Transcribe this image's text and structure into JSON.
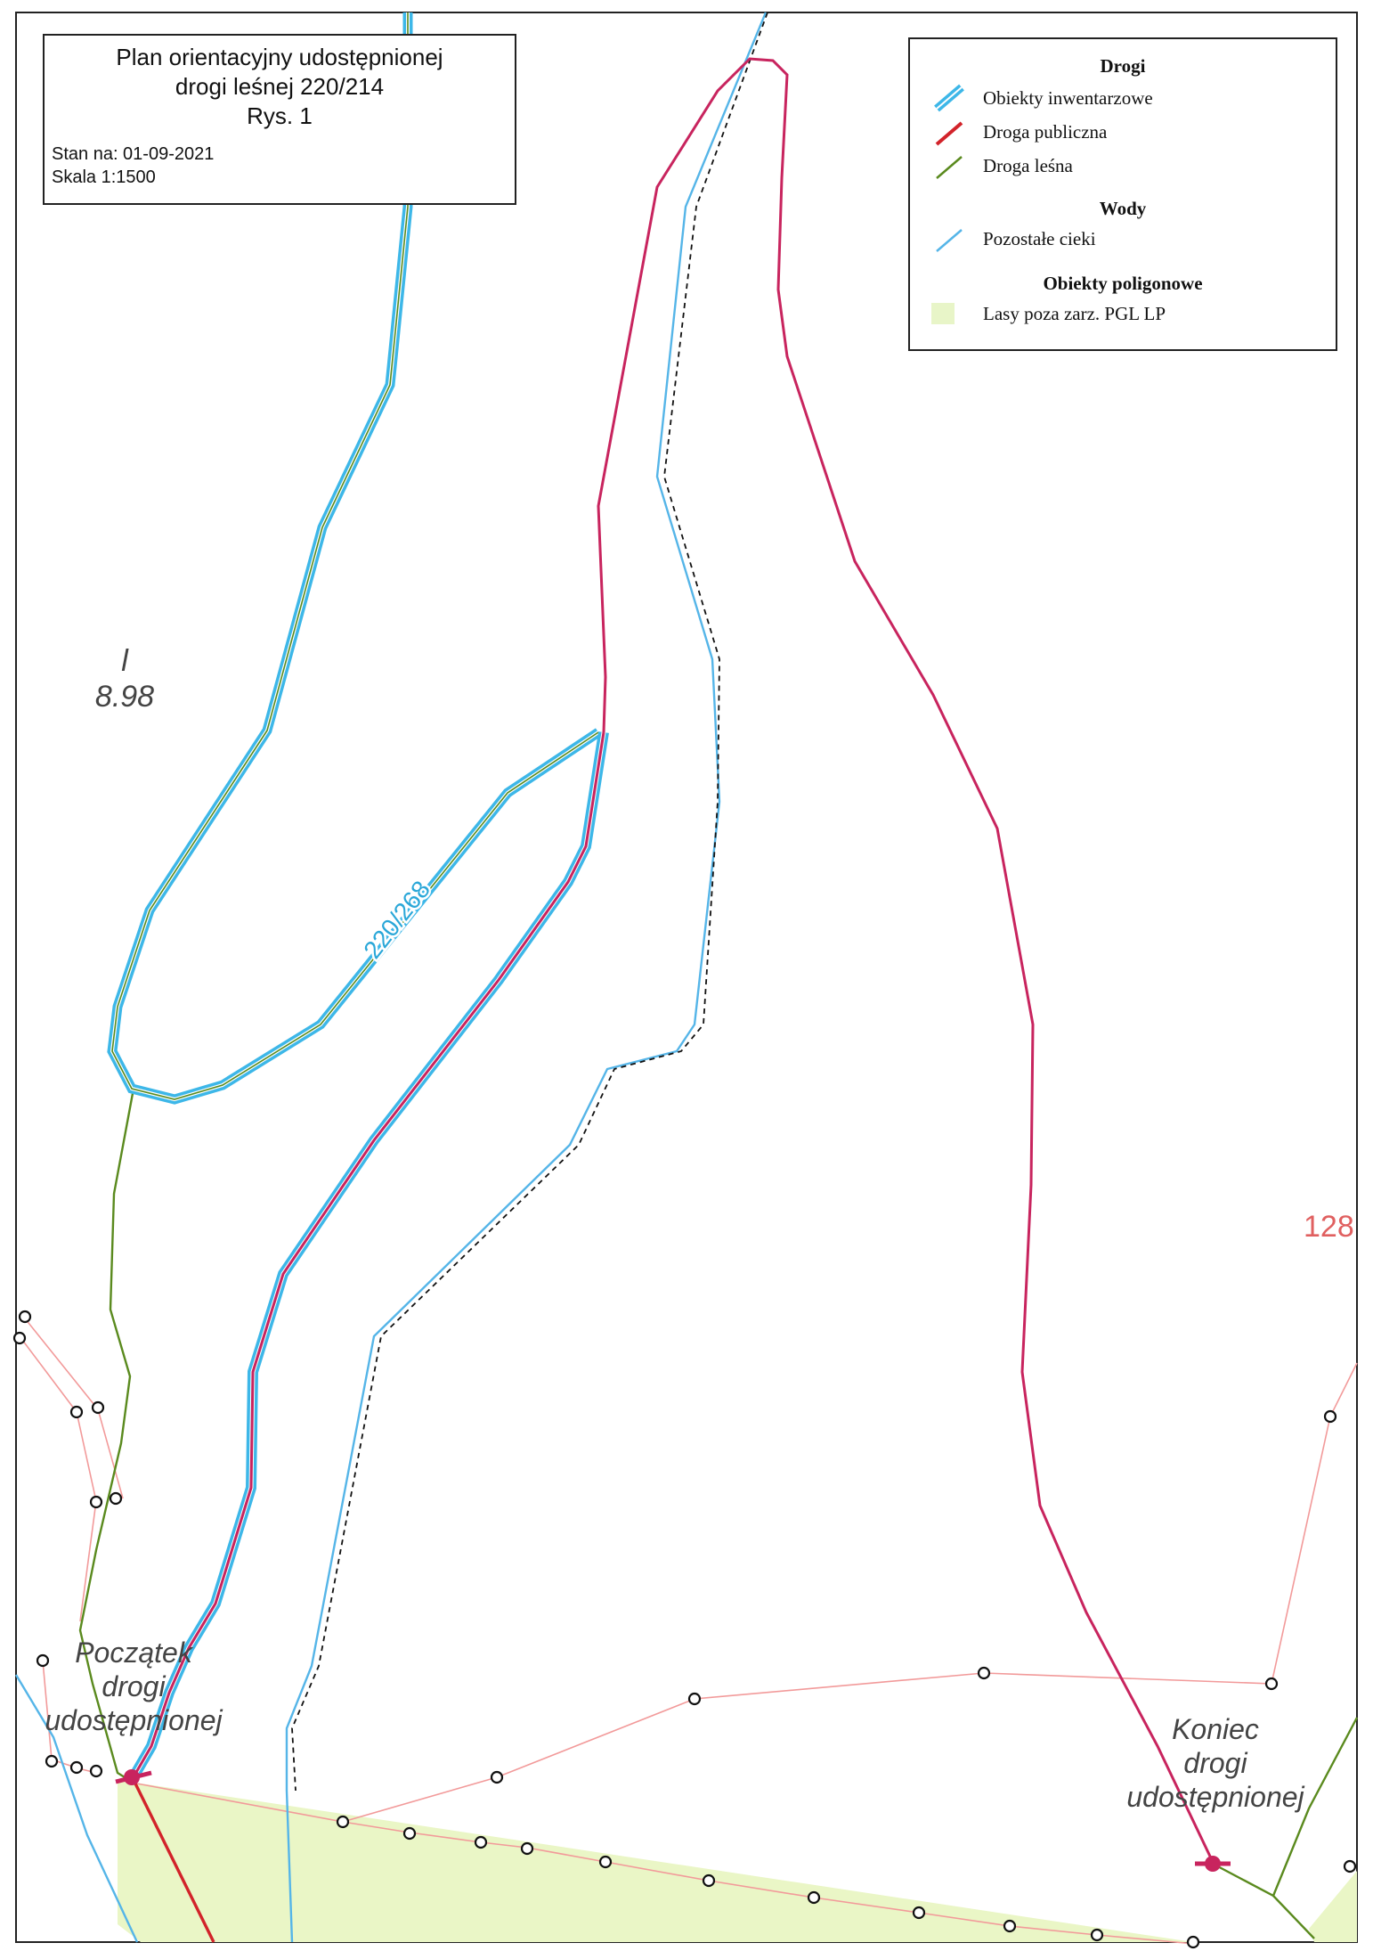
{
  "title": {
    "line1": "Plan orientacyjny udostępnionej",
    "line2": "drogi leśnej 220/214",
    "line3": "Rys. 1",
    "status": "Stan na: 01-09-2021",
    "scale": "Skala 1:1500"
  },
  "legend": {
    "section_roads": "Drogi",
    "roads": [
      {
        "label": "Obiekty inwentarzowe",
        "icon": "inventory-object-line-icon",
        "color": "#3db7e8"
      },
      {
        "label": "Droga publiczna",
        "icon": "public-road-line-icon",
        "color": "#d2232a"
      },
      {
        "label": "Droga leśna",
        "icon": "forest-road-line-icon",
        "color": "#5a8a1e"
      }
    ],
    "section_waters": "Wody",
    "waters": [
      {
        "label": "Pozostałe cieki",
        "icon": "stream-line-icon",
        "color": "#55b5e8"
      }
    ],
    "section_polygons": "Obiekty poligonowe",
    "polygons": [
      {
        "label": "Lasy poza zarz. PGL LP",
        "icon": "forest-area-swatch-icon",
        "color": "#e8f5c8"
      }
    ]
  },
  "labels": {
    "area_code_top": "l",
    "area_code_value": "8.98",
    "road_number": "220/268",
    "parcel_number": "128",
    "start_line1": "Początek",
    "start_line2": "drogi",
    "start_line3": "udostępnionej",
    "end_line1": "Koniec",
    "end_line2": "drogi",
    "end_line3": "udostępnionej"
  },
  "colors": {
    "public_road": "#c8245e",
    "inventory_road": "#3db7e8",
    "forest_road": "#5a8a1e",
    "stream": "#55b5e8",
    "parcel_boundary": "#f08b8b",
    "forest_fill": "#eaf6c6",
    "frame": "#222222"
  }
}
